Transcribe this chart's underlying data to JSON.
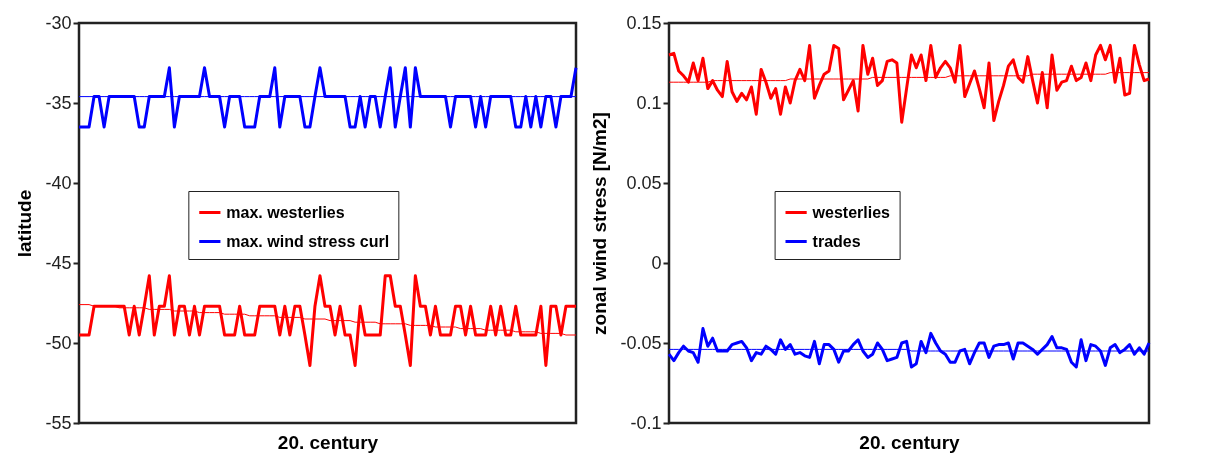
{
  "chart_data": [
    {
      "type": "line",
      "xlabel": "20. century",
      "ylabel": "latitude",
      "ylim": [
        -55,
        -30
      ],
      "yticks": [
        -55,
        -50,
        -45,
        -40,
        -35,
        -30
      ],
      "tick_labels": "y",
      "grid": false,
      "legend": "center",
      "line_style": "solid",
      "marker": "none",
      "categories": [
        null,
        null,
        null,
        null,
        null,
        null,
        null,
        null,
        null,
        null,
        null,
        null,
        null,
        null,
        null,
        null,
        null,
        null,
        null,
        null,
        null,
        null,
        null,
        null,
        null,
        null,
        null,
        null,
        null,
        null,
        null,
        null,
        null,
        null,
        null,
        null,
        null,
        null,
        null,
        null,
        null,
        null,
        null,
        null,
        null,
        null,
        null,
        null,
        null,
        null,
        null,
        null,
        null,
        null,
        null,
        null,
        null,
        null,
        null,
        null,
        null,
        null,
        null,
        null,
        null,
        null,
        null,
        null,
        null,
        null,
        null,
        null,
        null,
        null,
        null,
        null,
        null,
        null,
        null,
        null,
        null,
        null,
        null,
        null,
        null,
        null,
        null,
        null,
        null,
        null,
        null,
        null,
        null,
        null,
        null,
        null,
        null,
        null,
        null,
        null
      ],
      "series": [
        {
          "name": "max. westerlies",
          "color": "#ff0000",
          "values": [
            -49.5,
            -49.5,
            -49.5,
            -47.7,
            -47.7,
            -47.7,
            -47.7,
            -47.7,
            -47.7,
            -47.7,
            -49.5,
            -47.7,
            -49.5,
            -47.7,
            -45.8,
            -49.5,
            -47.7,
            -47.7,
            -45.8,
            -49.5,
            -47.7,
            -47.7,
            -49.5,
            -47.7,
            -49.5,
            -47.7,
            -47.7,
            -47.7,
            -47.7,
            -49.5,
            -49.5,
            -49.5,
            -47.7,
            -49.5,
            -49.5,
            -49.5,
            -47.7,
            -47.7,
            -47.7,
            -47.7,
            -49.5,
            -47.7,
            -49.5,
            -47.7,
            -47.7,
            -49.5,
            -51.4,
            -47.7,
            -45.8,
            -47.7,
            -47.7,
            -49.5,
            -47.7,
            -49.5,
            -49.5,
            -51.4,
            -47.7,
            -49.5,
            -49.5,
            -49.5,
            -49.5,
            -45.8,
            -45.8,
            -47.7,
            -47.7,
            -49.5,
            -51.4,
            -45.8,
            -47.7,
            -47.7,
            -49.5,
            -47.7,
            -49.5,
            -49.5,
            -49.5,
            -47.7,
            -47.7,
            -49.5,
            -47.7,
            -49.5,
            -49.5,
            -49.5,
            -47.7,
            -49.5,
            -47.7,
            -49.5,
            -49.5,
            -47.7,
            -49.5,
            -49.5,
            -49.5,
            -49.5,
            -47.7,
            -51.4,
            -47.7,
            -47.7,
            -49.5,
            -47.7,
            -47.7,
            -47.7
          ]
        },
        {
          "name": "max. wind stress curl",
          "color": "#0000ff",
          "values": [
            -36.5,
            -36.5,
            -36.5,
            -34.6,
            -34.6,
            -36.5,
            -34.6,
            -34.6,
            -34.6,
            -34.6,
            -34.6,
            -34.6,
            -36.5,
            -36.5,
            -34.6,
            -34.6,
            -34.6,
            -34.6,
            -32.8,
            -36.5,
            -34.6,
            -34.6,
            -34.6,
            -34.6,
            -34.6,
            -32.8,
            -34.6,
            -34.6,
            -34.6,
            -36.5,
            -34.6,
            -34.6,
            -34.6,
            -36.5,
            -36.5,
            -36.5,
            -34.6,
            -34.6,
            -34.6,
            -32.8,
            -36.5,
            -34.6,
            -34.6,
            -34.6,
            -34.6,
            -36.5,
            -36.5,
            -34.6,
            -32.8,
            -34.6,
            -34.6,
            -34.6,
            -34.6,
            -34.6,
            -36.5,
            -36.5,
            -34.6,
            -36.5,
            -34.6,
            -34.6,
            -36.5,
            -34.6,
            -32.8,
            -36.5,
            -34.6,
            -32.8,
            -36.5,
            -32.8,
            -34.6,
            -34.6,
            -34.6,
            -34.6,
            -34.6,
            -34.6,
            -36.5,
            -34.6,
            -34.6,
            -34.6,
            -34.6,
            -36.5,
            -34.6,
            -36.5,
            -34.6,
            -34.6,
            -34.6,
            -34.6,
            -34.6,
            -36.5,
            -36.5,
            -34.6,
            -36.5,
            -34.6,
            -36.5,
            -34.6,
            -34.6,
            -36.5,
            -34.6,
            -34.6,
            -34.6,
            -32.8
          ]
        },
        {
          "type": "line",
          "color": "#ff0000",
          "values": [
            -47.6,
            -47.6,
            -47.6,
            -47.7,
            -47.7,
            -47.7,
            -47.7,
            -47.7,
            -47.8,
            -47.8,
            -47.8,
            -47.8,
            -47.8,
            -47.8,
            -47.9,
            -47.9,
            -47.9,
            -47.9,
            -47.9,
            -48.0,
            -48.0,
            -48.0,
            -48.0,
            -48.0,
            -48.1,
            -48.1,
            -48.1,
            -48.1,
            -48.1,
            -48.2,
            -48.2,
            -48.2,
            -48.2,
            -48.2,
            -48.3,
            -48.3,
            -48.3,
            -48.3,
            -48.3,
            -48.3,
            -48.4,
            -48.4,
            -48.4,
            -48.4,
            -48.4,
            -48.5,
            -48.5,
            -48.5,
            -48.5,
            -48.5,
            -48.6,
            -48.6,
            -48.6,
            -48.6,
            -48.6,
            -48.7,
            -48.7,
            -48.7,
            -48.7,
            -48.7,
            -48.8,
            -48.8,
            -48.8,
            -48.8,
            -48.8,
            -48.8,
            -48.9,
            -48.9,
            -48.9,
            -48.9,
            -48.9,
            -49.0,
            -49.0,
            -49.0,
            -49.0,
            -49.0,
            -49.1,
            -49.1,
            -49.1,
            -49.1,
            -49.1,
            -49.2,
            -49.2,
            -49.2,
            -49.2,
            -49.2,
            -49.2,
            -49.3,
            -49.3,
            -49.3,
            -49.3,
            -49.3,
            -49.4,
            -49.4,
            -49.4,
            -49.4,
            -49.4,
            -49.5,
            -49.5,
            -49.5
          ]
        },
        {
          "type": "line",
          "color": "#0000ff",
          "values": [
            -34.6,
            -34.6,
            -34.6,
            -34.6,
            -34.6,
            -34.6,
            -34.6,
            -34.6,
            -34.6,
            -34.6,
            -34.6,
            -34.6,
            -34.6,
            -34.6,
            -34.6,
            -34.6,
            -34.6,
            -34.6,
            -34.6,
            -34.6,
            -34.6,
            -34.6,
            -34.6,
            -34.6,
            -34.6,
            -34.6,
            -34.6,
            -34.6,
            -34.6,
            -34.6,
            -34.6,
            -34.6,
            -34.6,
            -34.6,
            -34.6,
            -34.6,
            -34.6,
            -34.6,
            -34.6,
            -34.6,
            -34.6,
            -34.6,
            -34.6,
            -34.6,
            -34.6,
            -34.6,
            -34.6,
            -34.6,
            -34.6,
            -34.6,
            -34.6,
            -34.6,
            -34.6,
            -34.6,
            -34.6,
            -34.6,
            -34.6,
            -34.6,
            -34.6,
            -34.6,
            -34.6,
            -34.6,
            -34.6,
            -34.6,
            -34.6,
            -34.6,
            -34.6,
            -34.6,
            -34.6,
            -34.6,
            -34.6,
            -34.6,
            -34.6,
            -34.6,
            -34.6,
            -34.6,
            -34.6,
            -34.6,
            -34.6,
            -34.6,
            -34.6,
            -34.6,
            -34.6,
            -34.6,
            -34.6,
            -34.6,
            -34.6,
            -34.6,
            -34.6,
            -34.6,
            -34.6,
            -34.6,
            -34.6,
            -34.6,
            -34.6,
            -34.6,
            -34.6,
            -34.6,
            -34.6,
            -34.6
          ]
        }
      ]
    },
    {
      "type": "line",
      "xlabel": "20. century",
      "ylabel": "zonal wind stress [N/m2]",
      "ylim": [
        -0.1,
        0.15
      ],
      "yticks": [
        -0.1,
        -0.05,
        0,
        0.05,
        0.1,
        0.15
      ],
      "tick_labels": "y",
      "grid": false,
      "legend": "center",
      "line_style": "solid",
      "marker": "none",
      "categories": [
        null,
        null,
        null,
        null,
        null,
        null,
        null,
        null,
        null,
        null,
        null,
        null,
        null,
        null,
        null,
        null,
        null,
        null,
        null,
        null,
        null,
        null,
        null,
        null,
        null,
        null,
        null,
        null,
        null,
        null,
        null,
        null,
        null,
        null,
        null,
        null,
        null,
        null,
        null,
        null,
        null,
        null,
        null,
        null,
        null,
        null,
        null,
        null,
        null,
        null,
        null,
        null,
        null,
        null,
        null,
        null,
        null,
        null,
        null,
        null,
        null,
        null,
        null,
        null,
        null,
        null,
        null,
        null,
        null,
        null,
        null,
        null,
        null,
        null,
        null,
        null,
        null,
        null,
        null,
        null,
        null,
        null,
        null,
        null,
        null,
        null,
        null,
        null,
        null,
        null,
        null,
        null,
        null,
        null,
        null,
        null,
        null,
        null,
        null,
        null
      ],
      "series": [
        {
          "name": "westerlies",
          "color": "#ff0000",
          "values": [
            0.13,
            0.131,
            0.12,
            0.117,
            0.113,
            0.125,
            0.114,
            0.128,
            0.109,
            0.114,
            0.108,
            0.104,
            0.126,
            0.107,
            0.101,
            0.106,
            0.102,
            0.11,
            0.093,
            0.121,
            0.113,
            0.103,
            0.109,
            0.093,
            0.11,
            0.1,
            0.114,
            0.121,
            0.114,
            0.136,
            0.103,
            0.111,
            0.118,
            0.12,
            0.136,
            0.134,
            0.102,
            0.108,
            0.114,
            0.095,
            0.136,
            0.118,
            0.128,
            0.111,
            0.114,
            0.126,
            0.127,
            0.125,
            0.088,
            0.109,
            0.13,
            0.122,
            0.13,
            0.114,
            0.136,
            0.116,
            0.122,
            0.126,
            0.122,
            0.113,
            0.136,
            0.104,
            0.112,
            0.12,
            0.109,
            0.097,
            0.125,
            0.089,
            0.101,
            0.111,
            0.123,
            0.127,
            0.116,
            0.113,
            0.129,
            0.114,
            0.1,
            0.119,
            0.097,
            0.13,
            0.108,
            0.113,
            0.114,
            0.123,
            0.114,
            0.116,
            0.125,
            0.114,
            0.13,
            0.136,
            0.127,
            0.136,
            0.113,
            0.128,
            0.105,
            0.106,
            0.136,
            0.124,
            0.114,
            0.115
          ]
        },
        {
          "name": "trades",
          "color": "#0000ff",
          "values": [
            -0.057,
            -0.061,
            -0.056,
            -0.052,
            -0.055,
            -0.056,
            -0.062,
            -0.041,
            -0.052,
            -0.047,
            -0.055,
            -0.055,
            -0.055,
            -0.051,
            -0.05,
            -0.049,
            -0.053,
            -0.061,
            -0.056,
            -0.057,
            -0.052,
            -0.054,
            -0.057,
            -0.048,
            -0.054,
            -0.051,
            -0.057,
            -0.056,
            -0.058,
            -0.059,
            -0.049,
            -0.063,
            -0.051,
            -0.051,
            -0.054,
            -0.062,
            -0.055,
            -0.055,
            -0.051,
            -0.048,
            -0.055,
            -0.059,
            -0.057,
            -0.05,
            -0.054,
            -0.061,
            -0.06,
            -0.059,
            -0.05,
            -0.049,
            -0.065,
            -0.063,
            -0.049,
            -0.056,
            -0.044,
            -0.05,
            -0.055,
            -0.057,
            -0.062,
            -0.062,
            -0.055,
            -0.054,
            -0.063,
            -0.056,
            -0.05,
            -0.05,
            -0.059,
            -0.052,
            -0.051,
            -0.051,
            -0.05,
            -0.06,
            -0.05,
            -0.05,
            -0.052,
            -0.054,
            -0.057,
            -0.054,
            -0.051,
            -0.046,
            -0.053,
            -0.053,
            -0.054,
            -0.062,
            -0.065,
            -0.048,
            -0.061,
            -0.051,
            -0.052,
            -0.055,
            -0.064,
            -0.053,
            -0.051,
            -0.056,
            -0.054,
            -0.051,
            -0.057,
            -0.053,
            -0.057,
            -0.05
          ]
        },
        {
          "type": "line",
          "color": "#ff0000",
          "values": [
            0.113,
            0.113,
            0.113,
            0.113,
            0.113,
            0.113,
            0.113,
            0.113,
            0.113,
            0.114,
            0.114,
            0.114,
            0.114,
            0.114,
            0.114,
            0.114,
            0.114,
            0.114,
            0.114,
            0.114,
            0.114,
            0.114,
            0.114,
            0.114,
            0.114,
            0.115,
            0.115,
            0.115,
            0.115,
            0.115,
            0.115,
            0.115,
            0.115,
            0.115,
            0.115,
            0.115,
            0.115,
            0.115,
            0.115,
            0.115,
            0.115,
            0.115,
            0.116,
            0.116,
            0.116,
            0.116,
            0.116,
            0.116,
            0.116,
            0.116,
            0.116,
            0.116,
            0.116,
            0.116,
            0.116,
            0.116,
            0.116,
            0.116,
            0.117,
            0.117,
            0.117,
            0.117,
            0.117,
            0.117,
            0.117,
            0.117,
            0.117,
            0.117,
            0.117,
            0.117,
            0.117,
            0.117,
            0.117,
            0.117,
            0.117,
            0.118,
            0.118,
            0.118,
            0.118,
            0.118,
            0.118,
            0.118,
            0.118,
            0.118,
            0.118,
            0.118,
            0.118,
            0.118,
            0.118,
            0.118,
            0.118,
            0.119,
            0.119,
            0.119,
            0.119,
            0.119,
            0.119,
            0.119,
            0.119,
            0.119
          ]
        },
        {
          "type": "line",
          "color": "#0000ff",
          "values": [
            -0.054,
            -0.054,
            -0.054,
            -0.054,
            -0.054,
            -0.054,
            -0.054,
            -0.054,
            -0.054,
            -0.054,
            -0.054,
            -0.054,
            -0.054,
            -0.054,
            -0.054,
            -0.054,
            -0.054,
            -0.054,
            -0.054,
            -0.054,
            -0.054,
            -0.054,
            -0.054,
            -0.054,
            -0.054,
            -0.054,
            -0.054,
            -0.054,
            -0.054,
            -0.054,
            -0.054,
            -0.054,
            -0.054,
            -0.054,
            -0.054,
            -0.054,
            -0.054,
            -0.054,
            -0.054,
            -0.054,
            -0.054,
            -0.054,
            -0.054,
            -0.054,
            -0.054,
            -0.054,
            -0.054,
            -0.054,
            -0.054,
            -0.054,
            -0.055,
            -0.055,
            -0.055,
            -0.055,
            -0.055,
            -0.055,
            -0.055,
            -0.055,
            -0.055,
            -0.055,
            -0.055,
            -0.055,
            -0.055,
            -0.055,
            -0.055,
            -0.055,
            -0.055,
            -0.055,
            -0.055,
            -0.055,
            -0.055,
            -0.055,
            -0.055,
            -0.055,
            -0.055,
            -0.055,
            -0.055,
            -0.055,
            -0.055,
            -0.055,
            -0.055,
            -0.055,
            -0.055,
            -0.055,
            -0.055,
            -0.055,
            -0.055,
            -0.055,
            -0.055,
            -0.055,
            -0.055,
            -0.055,
            -0.055,
            -0.055,
            -0.055,
            -0.055,
            -0.055,
            -0.055,
            -0.055,
            -0.055
          ]
        }
      ]
    }
  ]
}
